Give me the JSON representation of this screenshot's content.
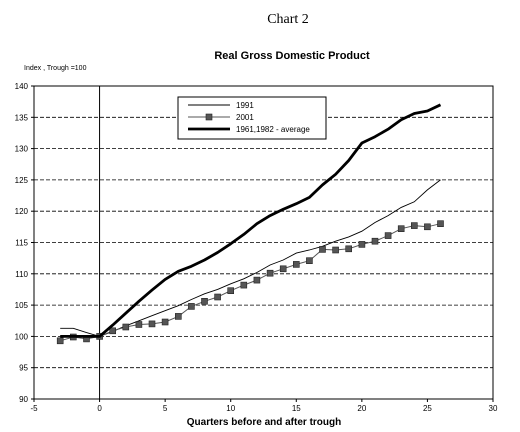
{
  "chart_data": {
    "type": "line",
    "chart_number": "Chart 2",
    "title": "Real Gross Domestic Product",
    "y_caption": "Index , Trough =100",
    "xlabel": "Quarters before and after trough",
    "xlim": [
      -5,
      30
    ],
    "ylim": [
      90,
      140
    ],
    "x_ticks": [
      -5,
      0,
      5,
      10,
      15,
      20,
      25,
      30
    ],
    "y_ticks": [
      90,
      95,
      100,
      105,
      110,
      115,
      120,
      125,
      130,
      135,
      140
    ],
    "grid": "horizontal dashed",
    "trough_line_x": 0,
    "legend_position": "top-center",
    "series": [
      {
        "name": "1991",
        "style": "thin-line",
        "color": "#000000",
        "x": [
          -3,
          -2,
          -1,
          0,
          1,
          2,
          3,
          4,
          5,
          6,
          7,
          8,
          9,
          10,
          11,
          12,
          13,
          14,
          15,
          16,
          17,
          18,
          19,
          20,
          21,
          22,
          23,
          24,
          25,
          26
        ],
        "values": [
          101.3,
          101.3,
          100.6,
          100,
          100.8,
          101.7,
          102.5,
          103.3,
          104.1,
          104.9,
          105.9,
          106.8,
          107.5,
          108.4,
          109.2,
          110.2,
          111.4,
          112.2,
          113.3,
          113.8,
          114.4,
          115.2,
          115.9,
          116.8,
          118.2,
          119.3,
          120.6,
          121.5,
          123.4,
          125.0
        ]
      },
      {
        "name": "2001",
        "style": "square-markers",
        "color": "#555555",
        "x": [
          -3,
          -2,
          -1,
          0,
          1,
          2,
          3,
          4,
          5,
          6,
          7,
          8,
          9,
          10,
          11,
          12,
          13,
          14,
          15,
          16,
          17,
          18,
          19,
          20,
          21,
          22,
          23,
          24,
          25,
          26
        ],
        "values": [
          99.3,
          99.9,
          99.6,
          100,
          100.9,
          101.5,
          101.9,
          102.0,
          102.3,
          103.2,
          104.8,
          105.6,
          106.3,
          107.3,
          108.2,
          109.0,
          110.1,
          110.8,
          111.5,
          112.1,
          113.9,
          113.8,
          114.0,
          114.7,
          115.2,
          116.1,
          117.2,
          117.7,
          117.5,
          118.0
        ]
      },
      {
        "name": "1961,1982 - average",
        "style": "thick-line",
        "color": "#000000",
        "x": [
          -3,
          -2,
          -1,
          0,
          1,
          2,
          3,
          4,
          5,
          6,
          7,
          8,
          9,
          10,
          11,
          12,
          13,
          14,
          15,
          16,
          17,
          18,
          19,
          20,
          21,
          22,
          23,
          24,
          25,
          26
        ],
        "values": [
          100,
          100,
          100,
          100,
          101.8,
          103.7,
          105.6,
          107.4,
          109.1,
          110.4,
          111.2,
          112.2,
          113.4,
          114.8,
          116.3,
          118.0,
          119.3,
          120.3,
          121.2,
          122.2,
          124.2,
          125.9,
          128.1,
          130.9,
          131.9,
          133.1,
          134.6,
          135.6,
          136.0,
          137.0
        ]
      }
    ]
  }
}
